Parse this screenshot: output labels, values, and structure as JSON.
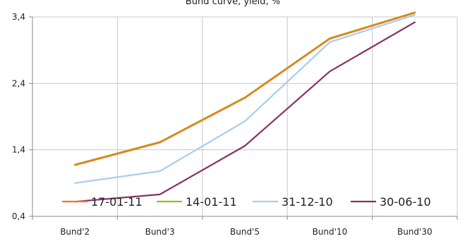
{
  "chart_data": {
    "type": "line",
    "title": "Bund curve, yield, %",
    "categories": [
      "Bund'2",
      "Bund'3",
      "Bund'5",
      "Bund'10",
      "Bund'30"
    ],
    "yticks": [
      "0,4",
      "1,4",
      "2,4",
      "3,4"
    ],
    "ylim": [
      0.4,
      3.4
    ],
    "grid": true,
    "legend_position": "bottom-inside",
    "series": [
      {
        "name": "17-01-11",
        "color": "#F07820",
        "values": [
          1.17,
          1.51,
          2.18,
          3.07,
          3.46
        ]
      },
      {
        "name": "14-01-11",
        "color": "#9CBB1C",
        "values": [
          1.18,
          1.52,
          2.19,
          3.08,
          3.47
        ]
      },
      {
        "name": "31-12-10",
        "color": "#A7CDF0",
        "values": [
          0.9,
          1.08,
          1.83,
          3.02,
          3.43
        ]
      },
      {
        "name": "30-06-10",
        "color": "#8B3063",
        "values": [
          0.62,
          0.73,
          1.46,
          2.58,
          3.32
        ]
      }
    ]
  }
}
